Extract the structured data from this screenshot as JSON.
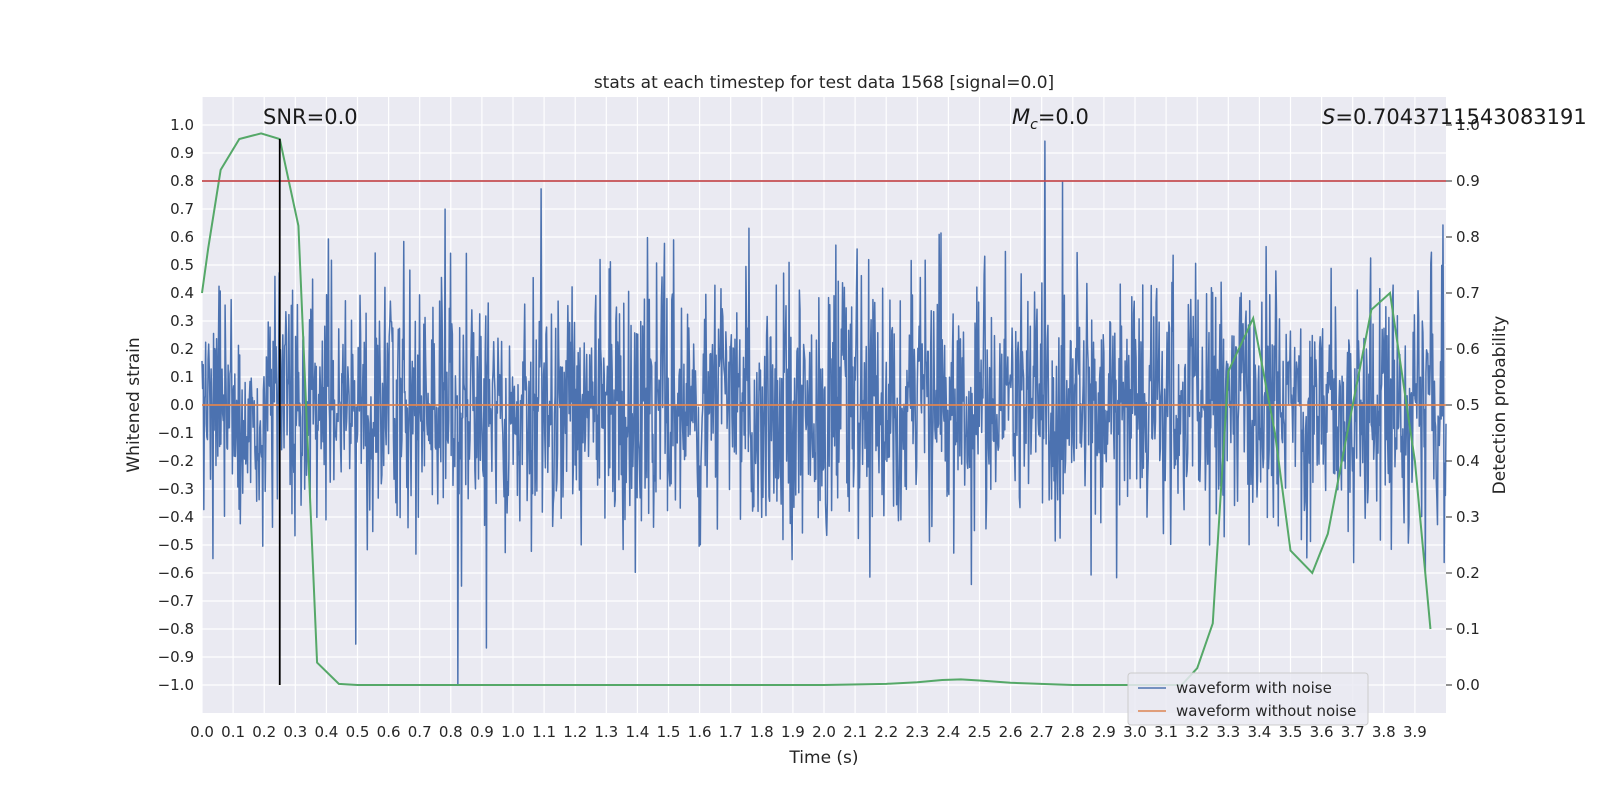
{
  "chart_data": {
    "type": "line",
    "title": "stats at each timestep for test data 1568 [signal=0.0]",
    "xlabel": "Time (s)",
    "ylabel": "Whitened strain",
    "y2label": "Detection probability",
    "xlim": [
      0.0,
      4.0
    ],
    "ylim": [
      -1.1,
      1.1
    ],
    "y2lim": [
      -0.05,
      1.05
    ],
    "xticks": [
      "0.0",
      "0.1",
      "0.2",
      "0.3",
      "0.4",
      "0.5",
      "0.6",
      "0.7",
      "0.8",
      "0.9",
      "1.0",
      "1.1",
      "1.2",
      "1.3",
      "1.4",
      "1.5",
      "1.6",
      "1.7",
      "1.8",
      "1.9",
      "2.0",
      "2.1",
      "2.2",
      "2.3",
      "2.4",
      "2.5",
      "2.6",
      "2.7",
      "2.8",
      "2.9",
      "3.0",
      "3.1",
      "3.2",
      "3.3",
      "3.4",
      "3.5",
      "3.6",
      "3.7",
      "3.8",
      "3.9"
    ],
    "yticks": [
      "1.0",
      "0.9",
      "0.8",
      "0.7",
      "0.6",
      "0.5",
      "0.4",
      "0.3",
      "0.2",
      "0.1",
      "0.0",
      "−0.1",
      "−0.2",
      "−0.3",
      "−0.4",
      "−0.5",
      "−0.6",
      "−0.7",
      "−0.8",
      "−0.9",
      "−1.0"
    ],
    "y2ticks": [
      "1.0",
      "0.9",
      "0.8",
      "0.7",
      "0.6",
      "0.5",
      "0.4",
      "0.3",
      "0.2",
      "0.1",
      "0.0"
    ],
    "grid": true,
    "legend_position": "lower-right",
    "annotations": {
      "snr": "SNR=0.0",
      "mc_symbol": "M",
      "mc_sub": "c",
      "mc_value": "=0.0",
      "s_symbol": "S",
      "s_value": "=0.7043711543083191"
    },
    "series": [
      {
        "name": "waveform with noise",
        "color": "#4c72b0",
        "axis": "left",
        "description": "dense whitened-strain noise, amplitude roughly within ±0.6 with spikes up to ~0.98 and down to ~−1.0"
      },
      {
        "name": "waveform without noise",
        "color": "#dd8452",
        "axis": "left",
        "x": [
          0.0,
          4.0
        ],
        "y": [
          0.0,
          0.0
        ]
      },
      {
        "axis": "right",
        "color": "#55a868",
        "x": [
          0.0,
          0.02,
          0.06,
          0.12,
          0.19,
          0.25,
          0.31,
          0.37,
          0.44,
          0.5,
          1.0,
          1.5,
          2.0,
          2.2,
          2.3,
          2.38,
          2.44,
          2.5,
          2.6,
          2.8,
          3.0,
          3.1,
          3.15,
          3.2,
          3.25,
          3.3,
          3.38,
          3.45,
          3.5,
          3.57,
          3.62,
          3.7,
          3.76,
          3.82,
          3.86,
          3.9,
          3.95
        ],
        "y": [
          0.7,
          0.78,
          0.92,
          0.975,
          0.985,
          0.975,
          0.82,
          0.04,
          0.002,
          0.0,
          0.0,
          0.0,
          0.0,
          0.002,
          0.005,
          0.009,
          0.01,
          0.008,
          0.004,
          0.0,
          0.0,
          0.0,
          0.0,
          0.03,
          0.11,
          0.56,
          0.655,
          0.45,
          0.24,
          0.2,
          0.27,
          0.5,
          0.67,
          0.7,
          0.55,
          0.4,
          0.1
        ]
      }
    ],
    "reference_lines": {
      "threshold": {
        "axis": "right",
        "y": 0.9,
        "color": "#c44e52"
      },
      "marker": {
        "x": 0.25,
        "y_from": -1.0,
        "y_to": 0.95,
        "color": "#000000"
      }
    }
  },
  "colors": {
    "plot_background": "#eaeaf2",
    "grid": "#ffffff",
    "text": "#262626"
  }
}
